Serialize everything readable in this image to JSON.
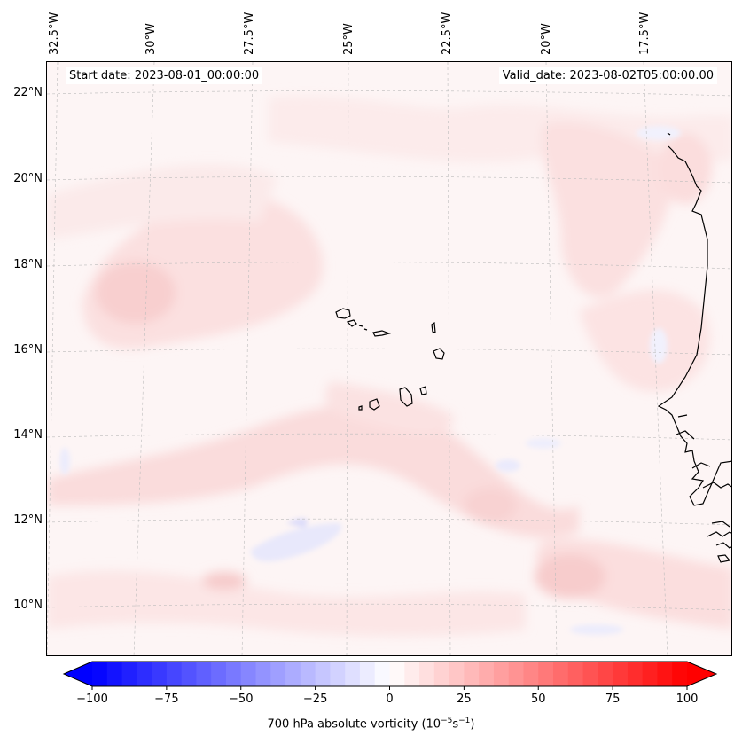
{
  "map": {
    "start_date": "Start date: 2023-08-01_00:00:00",
    "valid_date": "Valid_date: 2023-08-02T05:00:00.00",
    "longitude_labels": [
      "32.5°W",
      "30°W",
      "27.5°W",
      "25°W",
      "22.5°W",
      "20°W",
      "17.5°W"
    ],
    "latitude_labels": [
      "22°N",
      "20°N",
      "18°N",
      "16°N",
      "14°N",
      "12°N",
      "10°N"
    ],
    "field": "700 hPa absolute vorticity",
    "coastline_color": "#000000",
    "features": [
      "Cape Verde islands",
      "West African coastline"
    ]
  },
  "colorbar": {
    "label_text": "700 hPa absolute vorticity (10",
    "label_exp1": "−5",
    "label_mid": "s",
    "label_exp2": "−1",
    "label_end": ")",
    "ticks": [
      "−100",
      "−75",
      "−50",
      "−25",
      "0",
      "25",
      "50",
      "75",
      "100"
    ],
    "min": -100,
    "max": 100,
    "levels": 41,
    "colors": {
      "negative": "#0000ff",
      "zero": "#ffffff",
      "positive": "#ff0000"
    }
  }
}
